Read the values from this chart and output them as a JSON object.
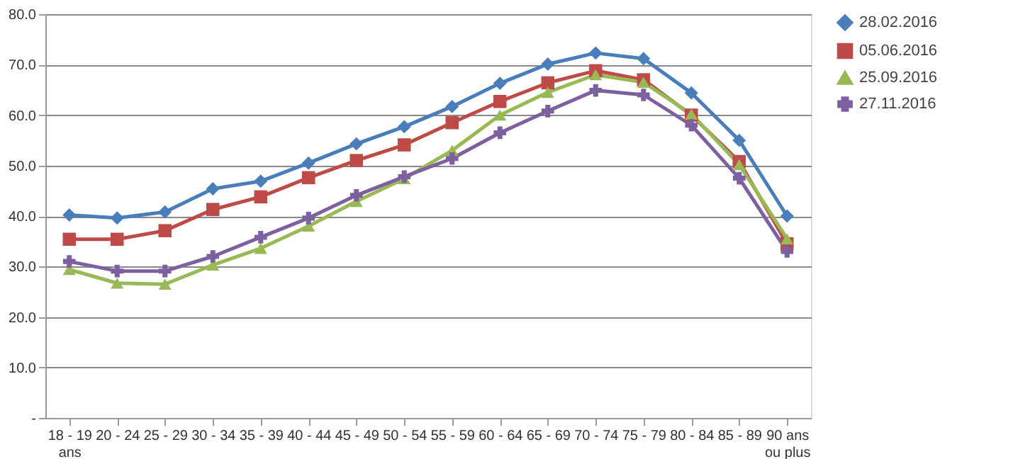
{
  "chart_data": {
    "type": "line",
    "categories": [
      "18 - 19\nans",
      "20 - 24",
      "25 - 29",
      "30 - 34",
      "35 - 39",
      "40 - 44",
      "45 - 49",
      "50 - 54",
      "55 - 59",
      "60 - 64",
      "65 - 69",
      "70 - 74",
      "75 - 79",
      "80 - 84",
      "85 - 89",
      "90 ans\nou plus"
    ],
    "series": [
      {
        "name": "28.02.2016",
        "color": "#4a7ebb",
        "marker": "diamond",
        "values": [
          40.2,
          39.6,
          40.8,
          45.4,
          46.9,
          50.5,
          54.3,
          57.7,
          61.7,
          66.3,
          70.1,
          72.3,
          71.2,
          64.4,
          55.0,
          40.0
        ]
      },
      {
        "name": "05.06.2016",
        "color": "#be4b48",
        "marker": "square",
        "values": [
          35.4,
          35.4,
          37.1,
          41.3,
          43.8,
          47.6,
          51.0,
          54.1,
          58.5,
          62.7,
          66.4,
          68.8,
          67.0,
          60.0,
          50.8,
          34.5
        ]
      },
      {
        "name": "25.09.2016",
        "color": "#98b954",
        "marker": "triangle",
        "values": [
          29.4,
          26.7,
          26.5,
          30.3,
          33.6,
          38.0,
          42.9,
          47.4,
          53.0,
          60.0,
          64.5,
          68.0,
          66.5,
          60.2,
          50.2,
          35.5
        ]
      },
      {
        "name": "27.11.2016",
        "color": "#7d60a0",
        "marker": "cross",
        "values": [
          31.0,
          29.1,
          29.1,
          32.0,
          35.8,
          39.6,
          44.1,
          47.8,
          51.4,
          56.5,
          60.8,
          64.9,
          64.0,
          58.0,
          47.5,
          33.0
        ]
      }
    ],
    "ylim": [
      0,
      80
    ],
    "yticks": [
      {
        "value": 0,
        "label": "-"
      },
      {
        "value": 10,
        "label": "10.0"
      },
      {
        "value": 20,
        "label": "20.0"
      },
      {
        "value": 30,
        "label": "30.0"
      },
      {
        "value": 40,
        "label": "40.0"
      },
      {
        "value": 50,
        "label": "50.0"
      },
      {
        "value": 60,
        "label": "60.0"
      },
      {
        "value": 70,
        "label": "70.0"
      },
      {
        "value": 80,
        "label": "80.0"
      }
    ],
    "grid": "y",
    "legend": "right",
    "line_style": "solid"
  }
}
